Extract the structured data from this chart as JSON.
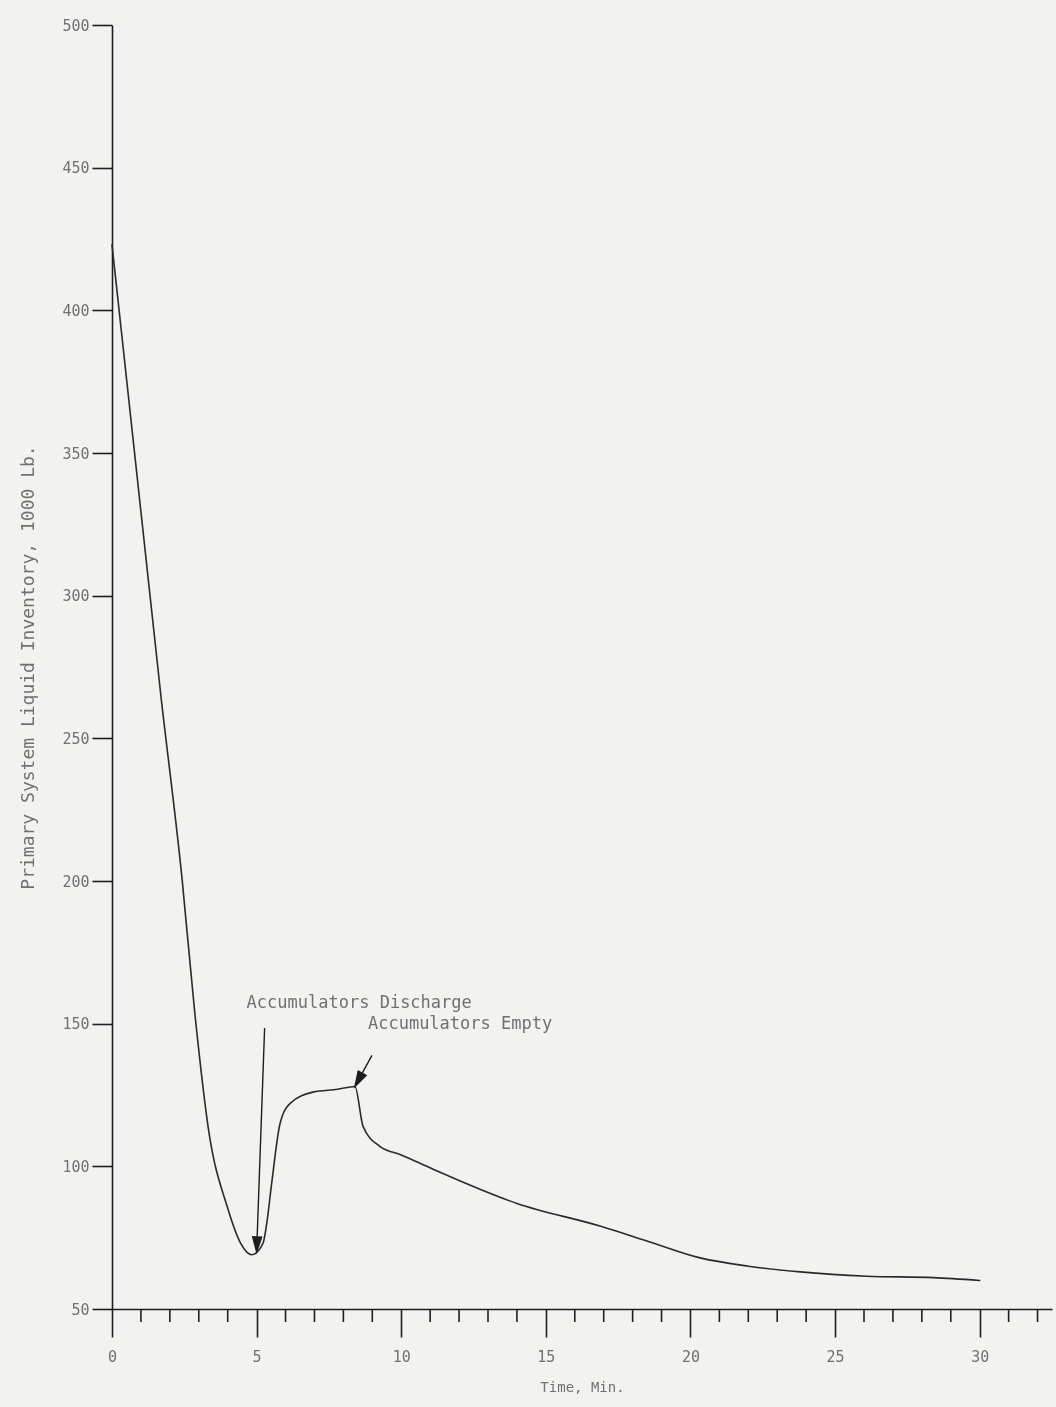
{
  "chart_data": {
    "type": "line",
    "xlabel": "Time, Min.",
    "ylabel": "Primary System Liquid Inventory, 1000 Lb.",
    "x": [
      0,
      1.7,
      2.42,
      2.87,
      3.35,
      3.98,
      4.45,
      4.83,
      5.22,
      5.35,
      5.52,
      5.81,
      6.15,
      6.95,
      7.8,
      8.4,
      8.68,
      9.26,
      10,
      11.1,
      14,
      16.9,
      18.6,
      20.3,
      22,
      23.8,
      26.1,
      28.4,
      30
    ],
    "series": [
      {
        "color": "#2a2a2a",
        "values": [
          423,
          264,
          201,
          153,
          112,
          86,
          73,
          69,
          73,
          80,
          94,
          115,
          122,
          126,
          127,
          128,
          114,
          107,
          104,
          99,
          87,
          79,
          73.5,
          68,
          65,
          63,
          61.5,
          61,
          60
        ]
      }
    ],
    "xlim": [
      0,
      32.5
    ],
    "ylim": [
      50,
      500
    ],
    "xticks": [
      0,
      {
        "value": 1,
        "label": null
      },
      {
        "value": 2,
        "label": null
      },
      {
        "value": 3,
        "label": null
      },
      {
        "value": 4,
        "label": null
      },
      5,
      {
        "value": 6,
        "label": null
      },
      {
        "value": 7,
        "label": null
      },
      {
        "value": 8,
        "label": null
      },
      {
        "value": 9,
        "label": null
      },
      10,
      {
        "value": 11,
        "label": null
      },
      {
        "value": 12,
        "label": null
      },
      {
        "value": 13,
        "label": null
      },
      {
        "value": 14,
        "label": null
      },
      15,
      {
        "value": 16,
        "label": null
      },
      {
        "value": 17,
        "label": null
      },
      {
        "value": 18,
        "label": null
      },
      {
        "value": 19,
        "label": null
      },
      20,
      {
        "value": 21,
        "label": null
      },
      {
        "value": 22,
        "label": null
      },
      {
        "value": 23,
        "label": null
      },
      {
        "value": 24,
        "label": null
      },
      25,
      {
        "value": 26,
        "label": null
      },
      {
        "value": 27,
        "label": null
      },
      {
        "value": 28,
        "label": null
      },
      {
        "value": 29,
        "label": null
      },
      30,
      {
        "value": 31,
        "label": null
      },
      {
        "value": 32,
        "label": null
      }
    ],
    "yticks": [
      50,
      100,
      150,
      200,
      250,
      300,
      350,
      400,
      450,
      500
    ],
    "annotations": [
      {
        "text": "Accumulators Discharge",
        "x": 5,
        "y": 70
      },
      {
        "text": "Accumulators Empty",
        "x": 8.4,
        "y": 128
      }
    ]
  }
}
